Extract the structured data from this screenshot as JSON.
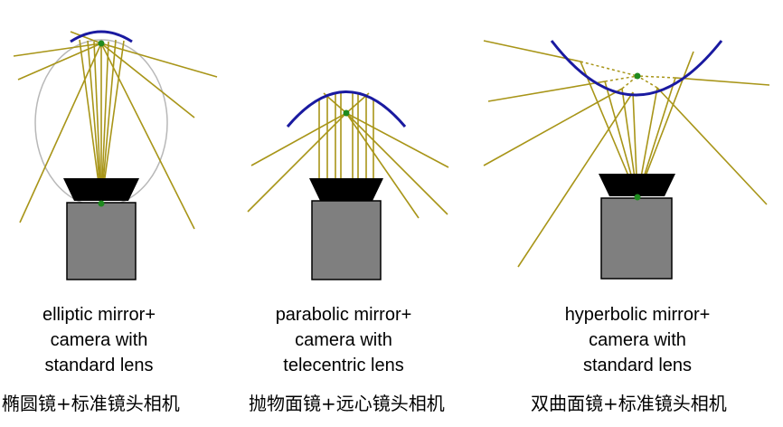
{
  "colors": {
    "mirror": "#1a1aa0",
    "ray": "#a89518",
    "focus": "#1f8a1f",
    "lens": "#000000",
    "camera": "#7f7f7f",
    "ellipse_outline": "#b8b8b8"
  },
  "panels": [
    {
      "caption_lines": [
        "elliptic mirror+",
        "camera with",
        "standard lens"
      ],
      "chinese_caption": "椭圆镜+标准镜头相机"
    },
    {
      "caption_lines": [
        "parabolic mirror+",
        "camera with",
        "telecentric lens"
      ],
      "chinese_caption": "抛物面镜+远心镜头相机"
    },
    {
      "caption_lines": [
        "hyperbolic mirror+",
        "camera with",
        "standard lens"
      ],
      "chinese_caption": "双曲面镜+标准镜头相机"
    }
  ]
}
